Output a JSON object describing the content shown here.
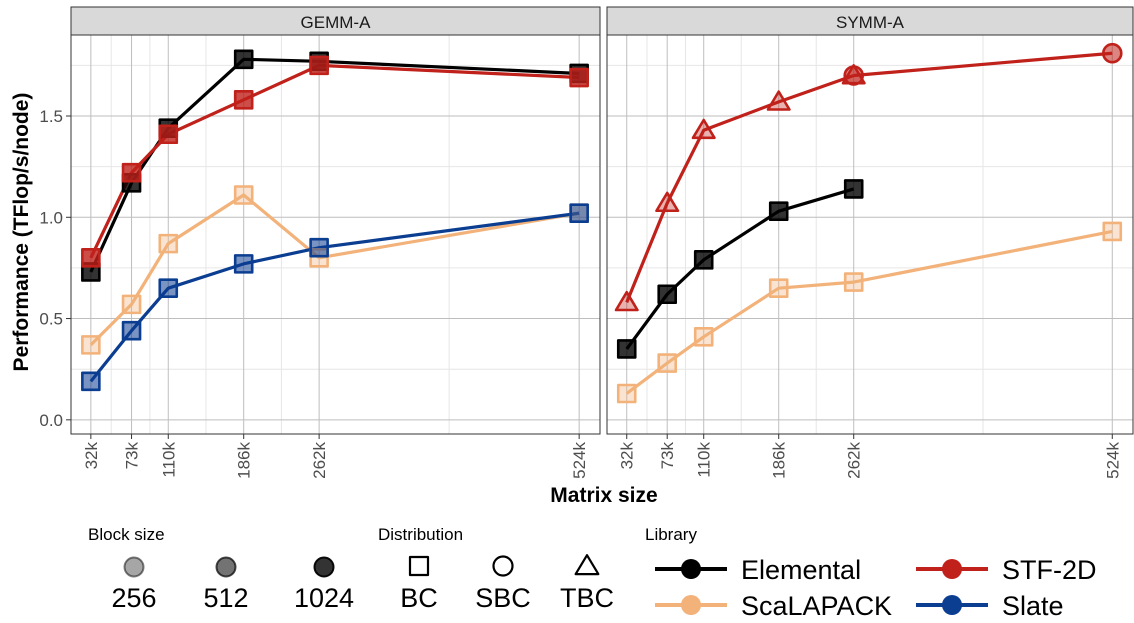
{
  "chart_data": {
    "type": "line",
    "xlabel": "Matrix size",
    "ylabel": "Performance (TFlop/s/node)",
    "x_ticks": [
      32000,
      73000,
      110000,
      186000,
      262000,
      524000
    ],
    "x_tick_labels": [
      "32k",
      "73k",
      "110k",
      "186k",
      "262k",
      "524k"
    ],
    "y_ticks": [
      0.0,
      0.5,
      1.0,
      1.5
    ],
    "y_tick_labels": [
      "0.0",
      "0.5",
      "1.0",
      "1.5"
    ],
    "ylim": [
      -0.07,
      1.9
    ],
    "xlim": [
      12000,
      545000
    ],
    "grid": true,
    "colors": {
      "Elemental": "#000000",
      "STF-2D": "#c0211a",
      "ScaLAPACK": "#f2b27a",
      "Slate": "#0b3d91",
      "grid_major": "#bebebe",
      "grid_minor": "#e6e6e6",
      "strip_bg": "#d9d9d9"
    },
    "panels": [
      {
        "title": "GEMM-A",
        "series": [
          {
            "name": "Elemental",
            "distribution": "BC",
            "block_size": "1024",
            "x": [
              32000,
              73000,
              110000,
              186000,
              262000,
              524000
            ],
            "y": [
              0.73,
              1.17,
              1.44,
              1.78,
              1.77,
              1.71
            ]
          },
          {
            "name": "STF-2D",
            "distribution": "BC",
            "block_size": "1024",
            "x": [
              32000,
              73000,
              110000,
              186000,
              262000,
              524000
            ],
            "y": [
              0.8,
              1.22,
              1.41,
              1.58,
              1.75,
              1.69
            ]
          },
          {
            "name": "ScaLAPACK",
            "distribution": "BC",
            "block_size": "256",
            "x": [
              32000,
              73000,
              110000,
              186000,
              262000,
              524000
            ],
            "y": [
              0.37,
              0.57,
              0.87,
              1.11,
              0.8,
              1.02
            ]
          },
          {
            "name": "Slate",
            "distribution": "BC",
            "block_size": "512",
            "x": [
              32000,
              73000,
              110000,
              186000,
              262000,
              524000
            ],
            "y": [
              0.19,
              0.44,
              0.65,
              0.77,
              0.85,
              1.02
            ]
          }
        ]
      },
      {
        "title": "SYMM-A",
        "series": [
          {
            "name": "STF-2D",
            "distribution": "TBC",
            "block_size": "256",
            "x": [
              32000,
              73000,
              110000,
              186000,
              262000
            ],
            "y": [
              0.58,
              1.07,
              1.43,
              1.57,
              1.7
            ]
          },
          {
            "name": "STF-2D",
            "distribution": "SBC",
            "block_size": "512",
            "x": [
              262000,
              524000
            ],
            "y": [
              1.7,
              1.81
            ]
          },
          {
            "name": "Elemental",
            "distribution": "BC",
            "block_size": "1024",
            "x": [
              32000,
              73000,
              110000,
              186000,
              262000
            ],
            "y": [
              0.35,
              0.62,
              0.79,
              1.03,
              1.14
            ]
          },
          {
            "name": "ScaLAPACK",
            "distribution": "BC",
            "block_size": "256",
            "x": [
              32000,
              73000,
              110000,
              186000,
              262000,
              524000
            ],
            "y": [
              0.13,
              0.28,
              0.41,
              0.65,
              0.68,
              0.93
            ]
          }
        ]
      }
    ],
    "legends": {
      "block_size": {
        "title": "Block size",
        "items": [
          "256",
          "512",
          "1024"
        ]
      },
      "distribution": {
        "title": "Distribution",
        "items": [
          "BC",
          "SBC",
          "TBC"
        ]
      },
      "library": {
        "title": "Library",
        "items": [
          "Elemental",
          "ScaLAPACK",
          "STF-2D",
          "Slate"
        ]
      }
    },
    "legend_position": "bottom"
  }
}
